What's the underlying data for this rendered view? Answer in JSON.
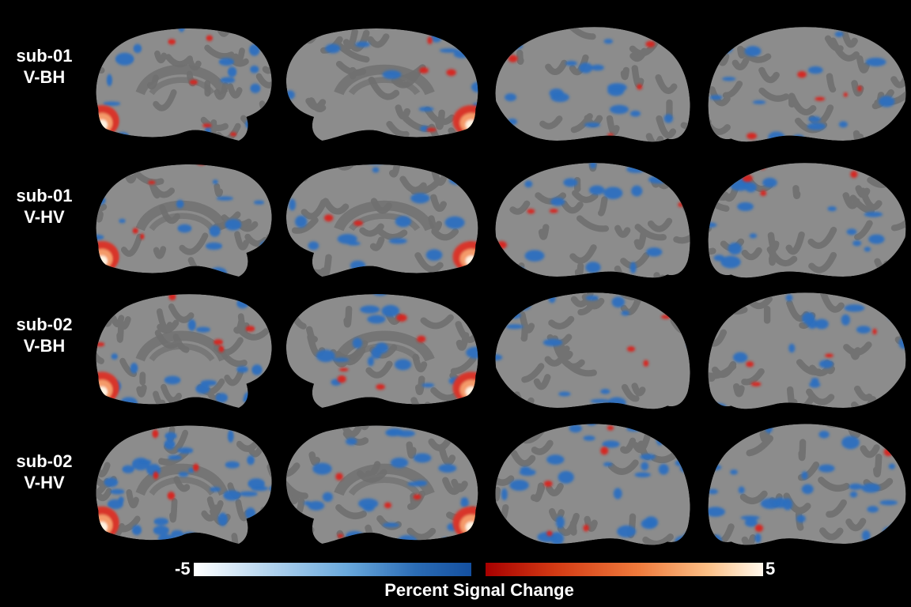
{
  "figure": {
    "row_labels": [
      {
        "subject": "sub-01",
        "condition": "V-BH"
      },
      {
        "subject": "sub-01",
        "condition": "V-HV"
      },
      {
        "subject": "sub-02",
        "condition": "V-BH"
      },
      {
        "subject": "sub-02",
        "condition": "V-HV"
      }
    ],
    "views": [
      "left-medial",
      "right-medial",
      "left-lateral",
      "right-lateral"
    ],
    "colorbar": {
      "min_label": "-5",
      "max_label": "5",
      "title": "Percent Signal Change",
      "negative_colors": [
        "#ffffff",
        "#6aa9dc",
        "#1450a0"
      ],
      "positive_colors": [
        "#a80000",
        "#ef7a3c",
        "#fff8ec"
      ]
    },
    "colors": {
      "background": "#000000",
      "cortex_light": "#8c8c8c",
      "cortex_dark": "#6f6f6f",
      "activation_negative": "#2a6fc0",
      "activation_positive": "#d8241a"
    }
  }
}
